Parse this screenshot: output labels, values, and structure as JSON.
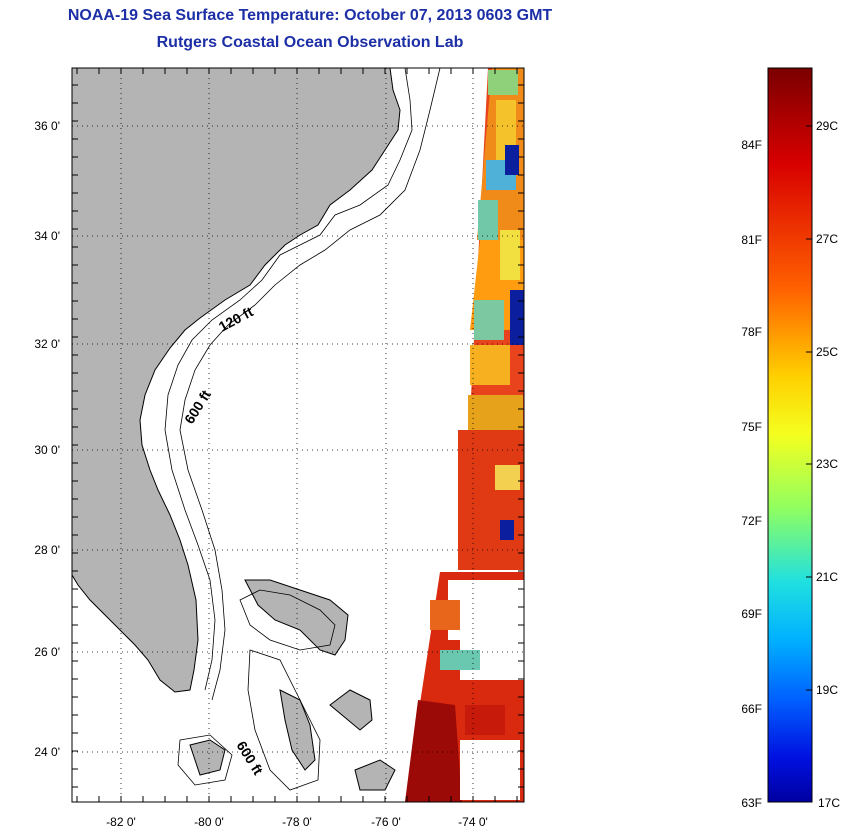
{
  "header": {
    "title": "NOAA-19 Sea Surface Temperature:  October 07, 2013 0603 GMT",
    "subtitle": "Rutgers Coastal Ocean Observation Lab"
  },
  "map": {
    "lat_labels": [
      "36 0'",
      "34 0'",
      "32 0'",
      "30 0'",
      "28 0'",
      "26 0'",
      "24 0'"
    ],
    "lon_labels": [
      "-82 0'",
      "-80 0'",
      "-78 0'",
      "-76 0'",
      "-74 0'"
    ],
    "contour_labels": [
      "120 ft",
      "600 ft",
      "600 ft"
    ],
    "land_color": "#b4b4b4",
    "grid": "dotted"
  },
  "colorbar": {
    "fahrenheit_labels": [
      "84F",
      "81F",
      "78F",
      "75F",
      "72F",
      "69F",
      "66F",
      "63F"
    ],
    "celsius_labels": [
      "29C",
      "27C",
      "25C",
      "23C",
      "21C",
      "19C",
      "17C"
    ],
    "colors": [
      "#7a0000",
      "#d80000",
      "#ff6000",
      "#ffd000",
      "#b0ff40",
      "#20e0e0",
      "#0060ff",
      "#0000a0"
    ]
  }
}
